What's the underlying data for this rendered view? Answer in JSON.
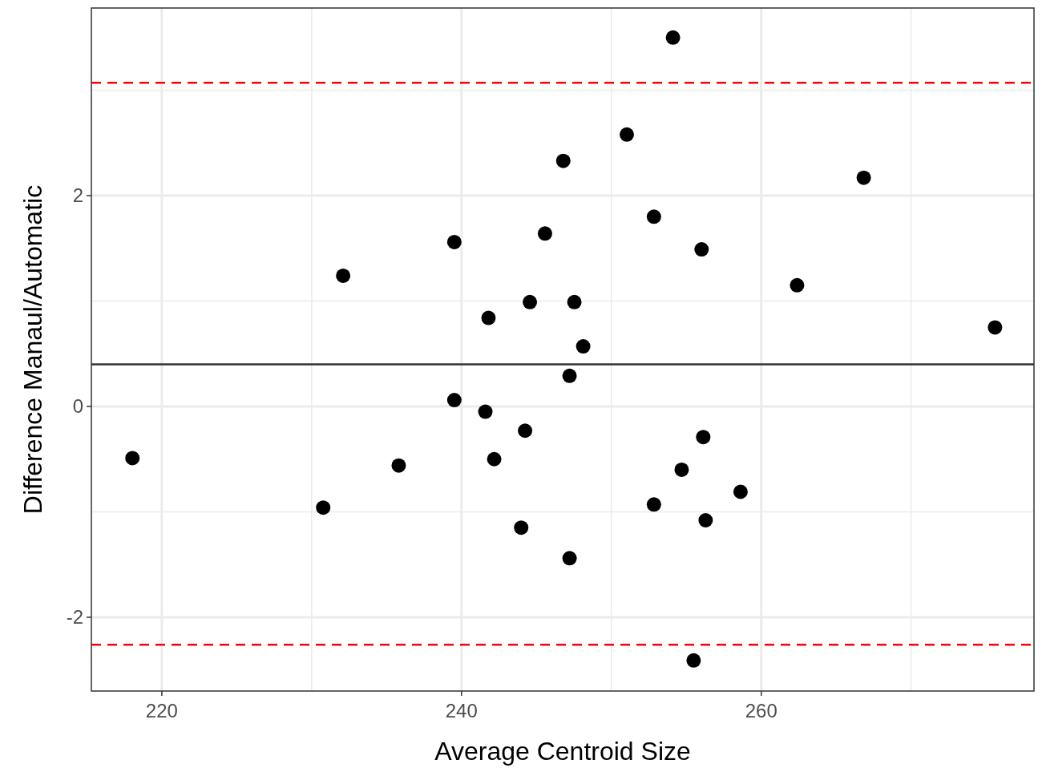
{
  "chart_data": {
    "type": "scatter",
    "xlabel": "Average Centroid Size",
    "ylabel": "Difference Manaul/Automatic",
    "xlim": [
      215.3,
      278.2
    ],
    "ylim": [
      -2.7,
      3.78
    ],
    "xticks": [
      220,
      {
        "value": 230,
        "label": null
      },
      240,
      {
        "value": 250,
        "label": null
      },
      260,
      {
        "value": 270,
        "label": null
      }
    ],
    "yticks": [
      -2,
      {
        "value": -1,
        "label": null
      },
      0,
      {
        "value": 1,
        "label": null
      },
      2,
      {
        "value": 3,
        "label": null
      }
    ],
    "grid": true,
    "marker": "circle",
    "series": [
      {
        "color": "#000000",
        "x": [
          218.04,
          232.1,
          230.77,
          235.81,
          239.52,
          239.52,
          241.8,
          241.59,
          242.18,
          244.56,
          244.24,
          243.98,
          245.57,
          246.79,
          247.21,
          247.53,
          248.12,
          247.21,
          251.03,
          252.84,
          252.84,
          254.11,
          256.02,
          256.13,
          254.69,
          256.29,
          258.62,
          255.49,
          262.39,
          266.84,
          275.6
        ],
        "values": [
          -0.49,
          1.24,
          -0.96,
          -0.56,
          1.56,
          0.06,
          0.84,
          -0.05,
          -0.5,
          0.99,
          -0.23,
          -1.15,
          1.64,
          2.33,
          0.29,
          0.99,
          0.57,
          -1.44,
          2.58,
          1.8,
          -0.93,
          3.5,
          1.49,
          -0.29,
          -0.6,
          -1.08,
          -0.81,
          -2.41,
          1.15,
          2.17,
          0.75
        ]
      }
    ],
    "ref_lines": [
      {
        "axis": "y",
        "value": 0.4,
        "color": "#333333",
        "line_style": "solid"
      },
      {
        "axis": "y",
        "value": 3.07,
        "color": "#ff0000",
        "line_style": "dashed"
      },
      {
        "axis": "y",
        "value": -2.26,
        "color": "#ff0000",
        "line_style": "dashed"
      }
    ]
  }
}
